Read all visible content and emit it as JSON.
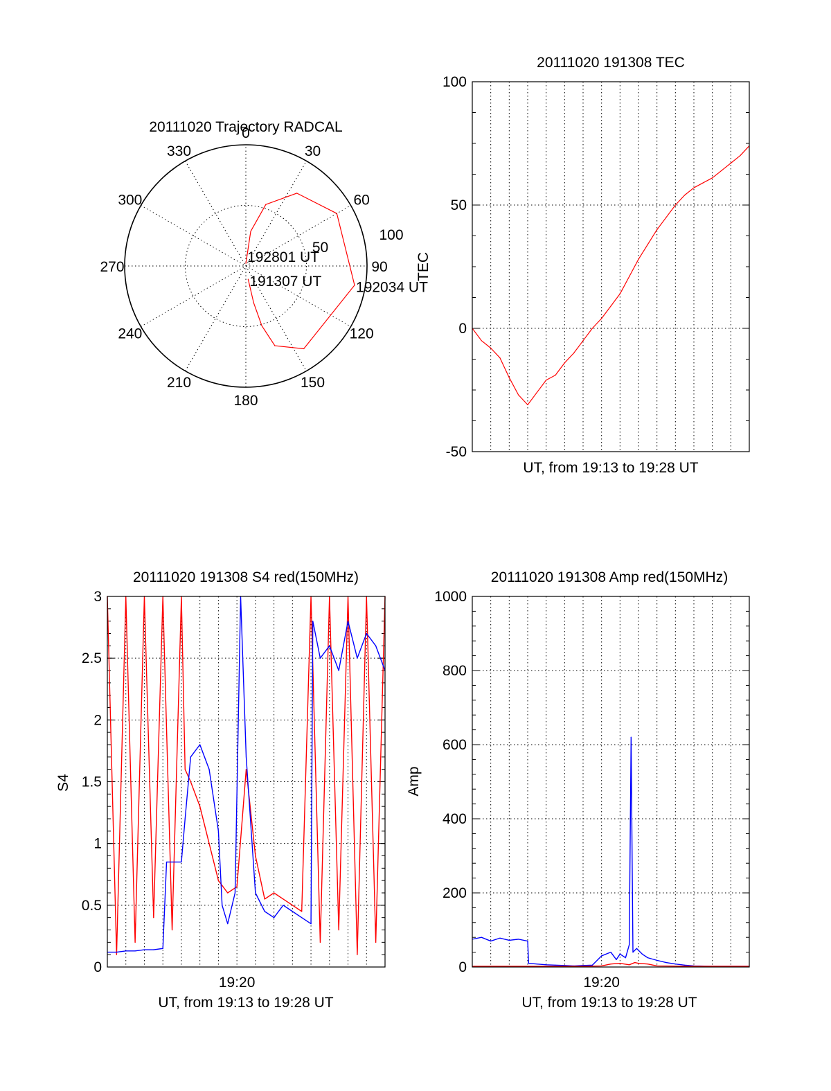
{
  "chart_data": [
    {
      "type": "scatter",
      "subtype": "polar-trajectory",
      "title": "20111020 Trajectory RADCAL",
      "azimuth_ticks": [
        "0",
        "30",
        "60",
        "90",
        "120",
        "150",
        "180",
        "210",
        "240",
        "270",
        "300",
        "330"
      ],
      "radial_ticks": [
        "50",
        "100"
      ],
      "radial_max": 100,
      "series": [
        {
          "color": "#ff0000",
          "points": [
            {
              "az": 170,
              "el": 80
            },
            {
              "az": 168,
              "el": 62
            },
            {
              "az": 165,
              "el": 44
            },
            {
              "az": 160,
              "el": 27
            },
            {
              "az": 145,
              "el": 15
            },
            {
              "az": 100,
              "el": 8
            },
            {
              "az": 60,
              "el": 12
            },
            {
              "az": 35,
              "el": 24
            },
            {
              "az": 18,
              "el": 42
            },
            {
              "az": 8,
              "el": 64
            },
            {
              "az": 1,
              "el": 88
            }
          ]
        }
      ],
      "annotations": [
        "192801 UT",
        "192034 UT",
        "191307 UT"
      ]
    },
    {
      "type": "line",
      "title": "20111020 191308 TEC",
      "xlabel": "UT, from 19:13 to 19:28 UT",
      "ylabel": "TEC",
      "yticks": [
        "100",
        "50",
        "0",
        "-50"
      ],
      "ylim": [
        -50,
        100
      ],
      "xlim": [
        0,
        15
      ],
      "x_unit": "minutes after 19:13",
      "grid": true,
      "series": [
        {
          "color": "#ff0000",
          "x": [
            0,
            0.5,
            1,
            1.5,
            2,
            2.5,
            3,
            3.5,
            4,
            4.5,
            5,
            5.5,
            6,
            6.5,
            7,
            7.5,
            8,
            8.5,
            9,
            9.5,
            10,
            10.5,
            11,
            11.5,
            12,
            12.5,
            13,
            13.5,
            14,
            14.5,
            15
          ],
          "y": [
            0,
            -5,
            -8,
            -12,
            -20,
            -27,
            -31,
            -26,
            -21,
            -19,
            -14,
            -10,
            -5,
            0,
            4,
            9,
            14,
            21,
            28,
            34,
            40,
            45,
            50,
            54,
            57,
            59,
            61,
            64,
            67,
            70,
            74
          ]
        }
      ]
    },
    {
      "type": "line",
      "title": "20111020 191308 S4 red(150MHz)",
      "xlabel": "UT, from 19:13 to 19:28 UT",
      "ylabel": "S4",
      "xticks": [
        "19:20"
      ],
      "yticks": [
        "3",
        "2.5",
        "2",
        "1.5",
        "1",
        "0.5",
        "0"
      ],
      "ylim": [
        0,
        3
      ],
      "xlim": [
        0,
        15
      ],
      "x_unit": "minutes after 19:13",
      "grid": true,
      "series": [
        {
          "color": "#ff0000",
          "x": [
            0,
            0.5,
            1,
            1.5,
            2,
            2.5,
            3,
            3.5,
            4,
            4.2,
            4.5,
            5,
            5.5,
            6,
            6.5,
            7,
            7.5,
            8,
            8.5,
            9,
            9.5,
            10,
            10.5,
            11,
            11.5,
            12,
            12.5,
            13,
            13.5,
            14,
            14.5,
            15
          ],
          "y": [
            3,
            0.1,
            3,
            0.2,
            3,
            0.4,
            3,
            0.3,
            3,
            1.6,
            1.5,
            1.3,
            1.0,
            0.7,
            0.6,
            0.65,
            1.6,
            0.9,
            0.55,
            0.6,
            0.55,
            0.5,
            0.45,
            3,
            0.2,
            3,
            0.3,
            3,
            0.1,
            3,
            0.2,
            3
          ]
        },
        {
          "color": "#0000ff",
          "x": [
            0,
            0.5,
            1,
            1.5,
            2,
            2.5,
            3,
            3.2,
            3.5,
            4,
            4.2,
            4.5,
            5,
            5.5,
            6,
            6.2,
            6.5,
            6.9,
            7.2,
            7.5,
            8,
            8.5,
            9,
            9.5,
            10,
            10.5,
            11,
            11.1,
            11.5,
            12,
            12.5,
            13,
            13.5,
            14,
            14.5,
            15
          ],
          "y": [
            0.12,
            0.12,
            0.13,
            0.13,
            0.14,
            0.14,
            0.15,
            0.85,
            0.85,
            0.85,
            1.2,
            1.7,
            1.8,
            1.6,
            1.1,
            0.5,
            0.35,
            0.6,
            3.0,
            1.7,
            0.6,
            0.45,
            0.4,
            0.5,
            0.45,
            0.4,
            0.35,
            2.8,
            2.5,
            2.6,
            2.4,
            2.8,
            2.5,
            2.7,
            2.6,
            2.4
          ]
        }
      ]
    },
    {
      "type": "line",
      "title": "20111020 191308 Amp red(150MHz)",
      "xlabel": "UT, from 19:13 to 19:28 UT",
      "ylabel": "Amp",
      "xticks": [
        "19:20"
      ],
      "yticks": [
        "1000",
        "800",
        "600",
        "400",
        "200",
        "0"
      ],
      "ylim": [
        0,
        1000
      ],
      "xlim": [
        0,
        15
      ],
      "x_unit": "minutes after 19:13",
      "grid": true,
      "series": [
        {
          "color": "#0000ff",
          "x": [
            0,
            0.5,
            1,
            1.5,
            2,
            2.5,
            3,
            3.05,
            3.5,
            4,
            4.5,
            5,
            5.5,
            6,
            6.5,
            7,
            7.5,
            7.8,
            8,
            8.3,
            8.5,
            8.6,
            8.7,
            8.9,
            9.2,
            9.5,
            10,
            10.5,
            11,
            11.5,
            12,
            13,
            14,
            15
          ],
          "y": [
            75,
            80,
            70,
            78,
            72,
            75,
            70,
            10,
            8,
            6,
            5,
            4,
            3,
            4,
            5,
            30,
            40,
            20,
            35,
            25,
            60,
            620,
            40,
            50,
            35,
            25,
            18,
            12,
            8,
            5,
            3,
            2,
            2,
            2
          ]
        },
        {
          "color": "#ff0000",
          "x": [
            0,
            2,
            4,
            6,
            7,
            7.5,
            8,
            8.5,
            8.8,
            9,
            9.5,
            10,
            12,
            15
          ],
          "y": [
            2,
            2,
            2,
            2,
            3,
            8,
            10,
            6,
            12,
            10,
            8,
            3,
            2,
            2
          ]
        }
      ]
    }
  ]
}
